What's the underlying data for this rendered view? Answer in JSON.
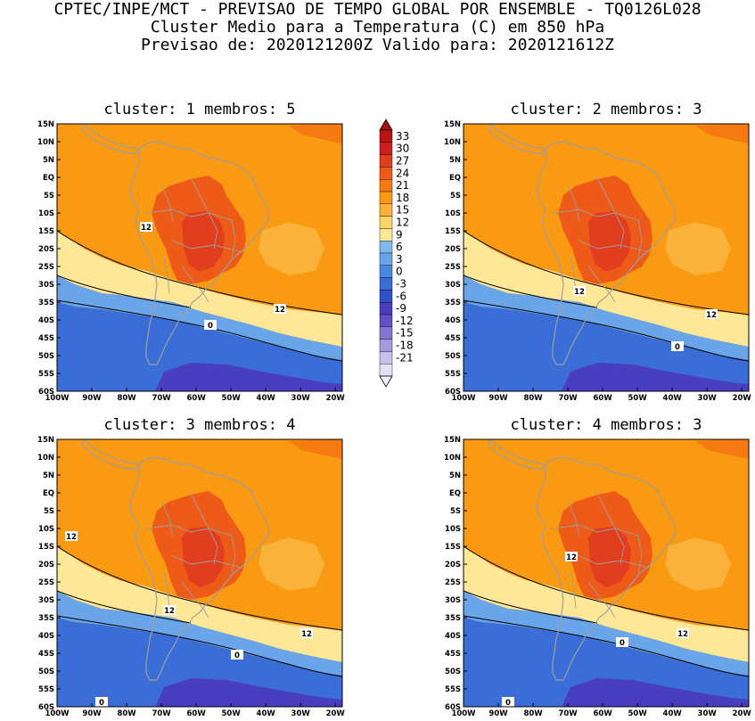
{
  "header": {
    "line1": "CPTEC/INPE/MCT - PREVISAO DE TEMPO GLOBAL POR ENSEMBLE - TQ0126L028",
    "line2": "Cluster Medio para a Temperatura (C) em 850 hPa",
    "line3": "Previsao de: 2020121200Z   Valido para: 2020121612Z"
  },
  "lat_labels": [
    "15N",
    "10N",
    "5N",
    "EQ",
    "5S",
    "10S",
    "15S",
    "20S",
    "25S",
    "30S",
    "35S",
    "40S",
    "45S",
    "50S",
    "55S",
    "60S"
  ],
  "lon_labels": [
    "100W",
    "90W",
    "80W",
    "70W",
    "60W",
    "50W",
    "40W",
    "30W",
    "20W"
  ],
  "panels": [
    {
      "title": "cluster: 1   membros: 5",
      "contour_labels": [
        "12",
        "12",
        "0"
      ]
    },
    {
      "title": "cluster: 2   membros: 3",
      "contour_labels": [
        "12",
        "12",
        "0"
      ]
    },
    {
      "title": "cluster: 3   membros: 4",
      "contour_labels": [
        "12",
        "12",
        "12",
        "0",
        "0"
      ]
    },
    {
      "title": "cluster: 4   membros: 3",
      "contour_labels": [
        "12",
        "12",
        "0",
        "0"
      ]
    }
  ],
  "colorbar": {
    "labels": [
      "33",
      "30",
      "27",
      "24",
      "21",
      "18",
      "15",
      "12",
      "9",
      "6",
      "3",
      "0",
      "-3",
      "-6",
      "-9",
      "-12",
      "-15",
      "-18",
      "-21"
    ],
    "colors": [
      "#b81414",
      "#cc2020",
      "#e03e1e",
      "#ee5a18",
      "#f67a12",
      "#f99a12",
      "#fab23a",
      "#fdd468",
      "#fee898",
      "#7eb9ee",
      "#6aa5ea",
      "#4c88e0",
      "#3a6ed6",
      "#3052c8",
      "#4a3ec0",
      "#6450c6",
      "#8474d2",
      "#a49ade",
      "#c8c0ec",
      "#e6e0f6"
    ]
  },
  "colors": {
    "cold_deep": "#4a3ec0",
    "cold": "#3a6ed6",
    "cool": "#6aa5ea",
    "mild": "#fee898",
    "warm": "#f99a12",
    "hot": "#ee5a18",
    "coast": "#9e9e9e"
  }
}
